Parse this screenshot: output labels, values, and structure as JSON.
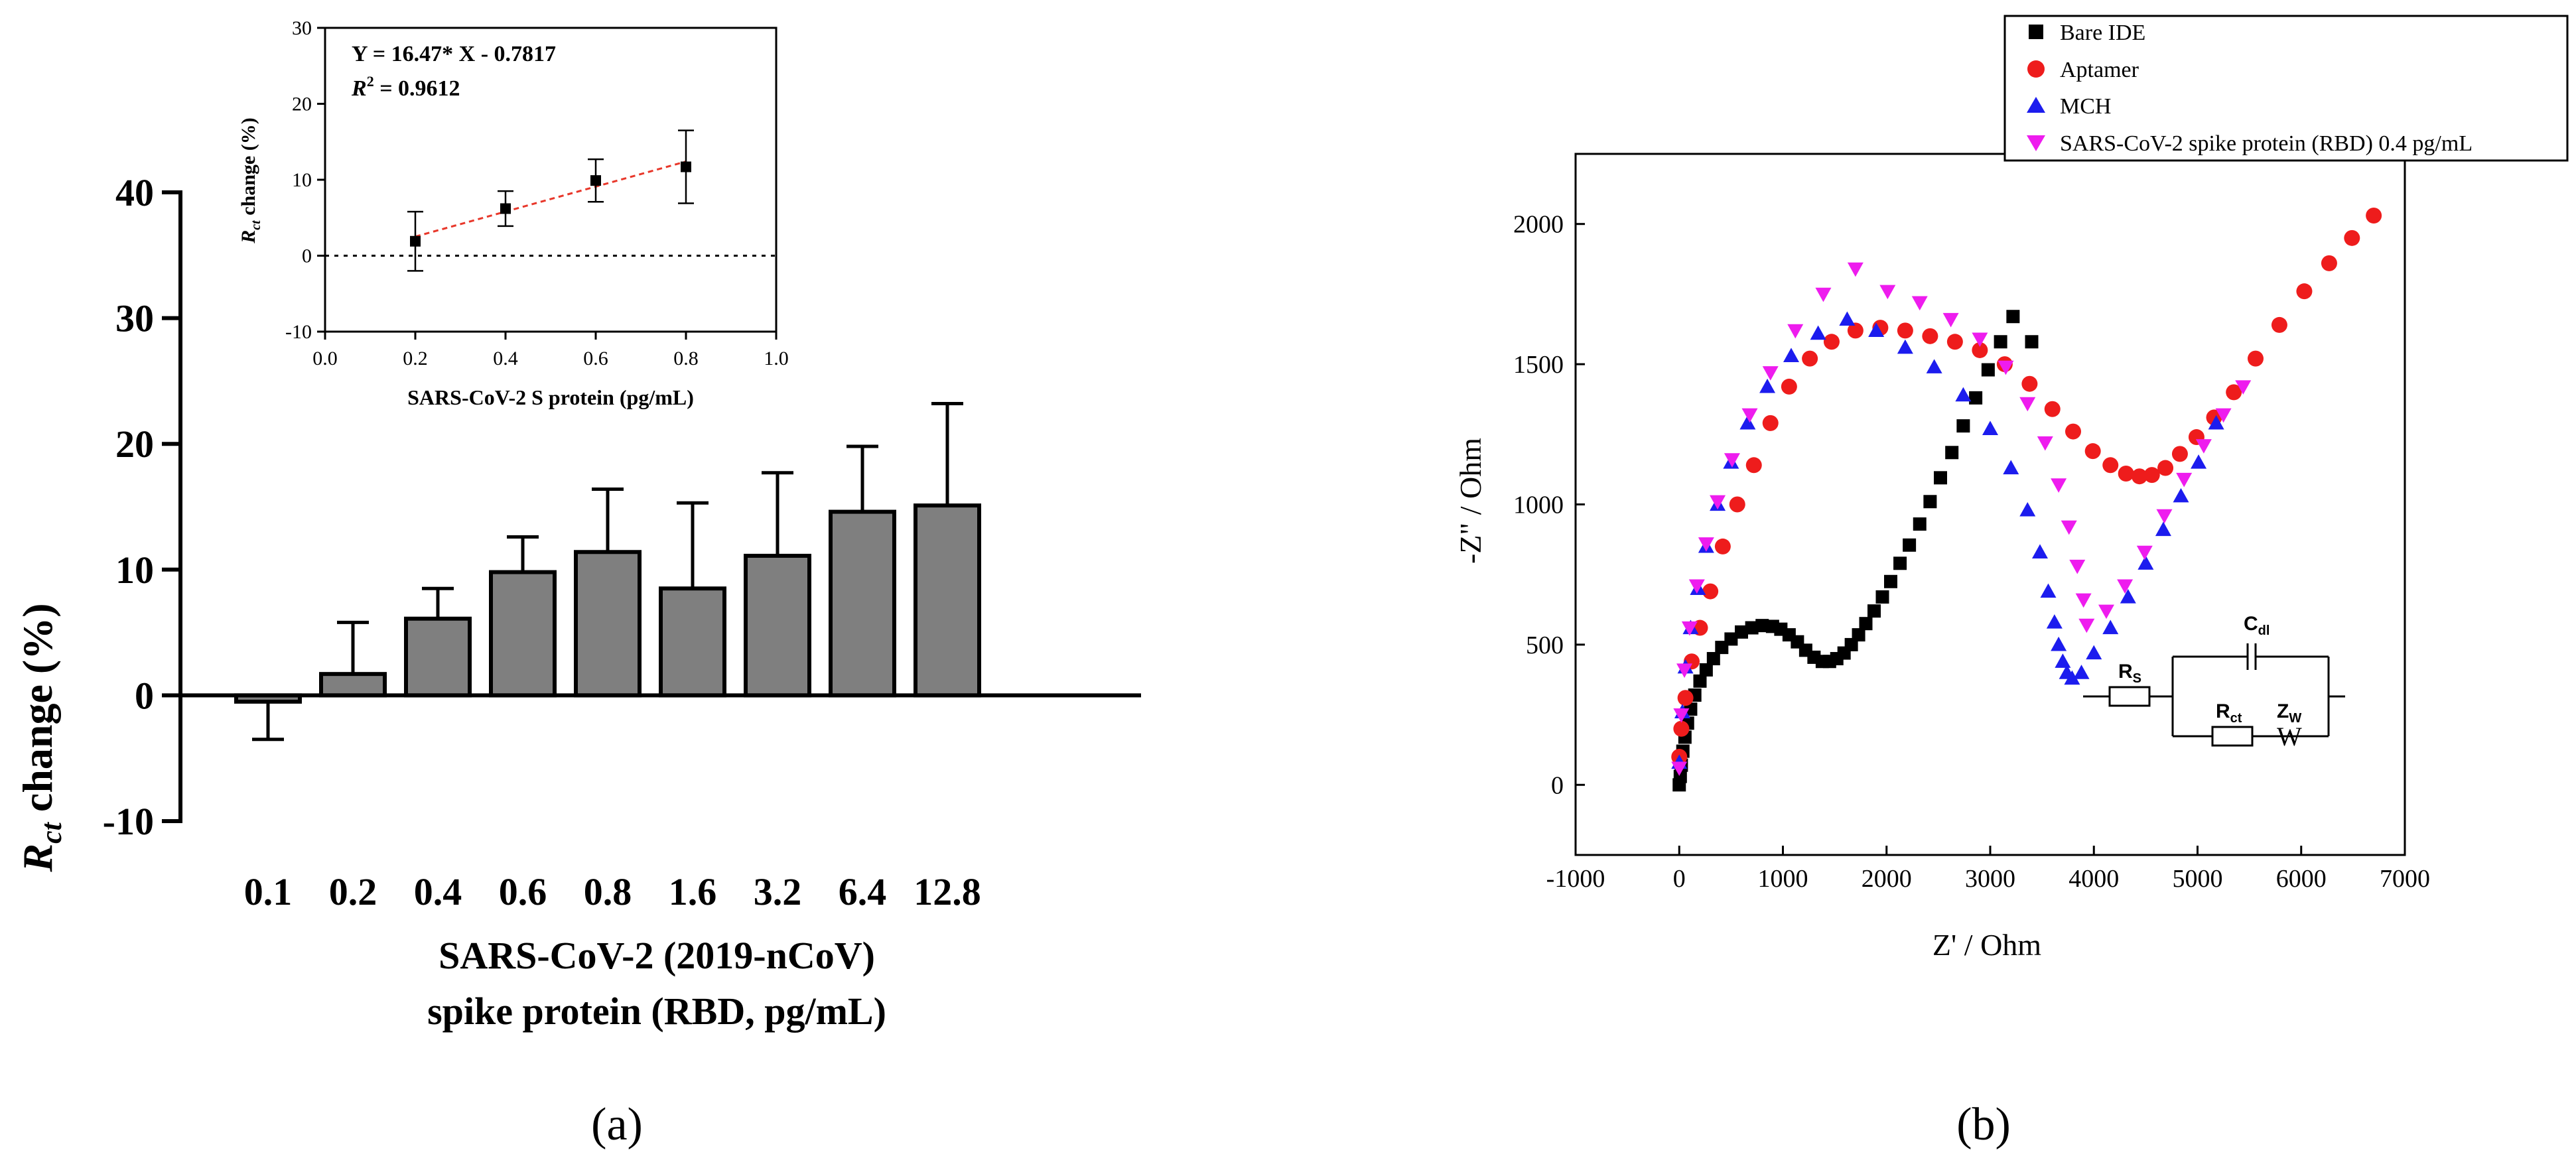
{
  "panel_labels": {
    "a": "(a)",
    "b": "(b)"
  },
  "chart_data": [
    {
      "id": "a_main",
      "type": "bar",
      "categories": [
        "0.1",
        "0.2",
        "0.4",
        "0.6",
        "0.8",
        "1.6",
        "3.2",
        "6.4",
        "12.8"
      ],
      "series": [
        {
          "values": [
            -0.5,
            1.7,
            6.1,
            9.8,
            11.4,
            8.5,
            11.1,
            14.6,
            15.1
          ],
          "error": [
            3.0,
            4.1,
            2.4,
            2.8,
            5.0,
            6.8,
            6.6,
            5.2,
            8.1
          ]
        }
      ],
      "ylabel": {
        "main": "R",
        "sub": "ct",
        "tail": " change (%)"
      },
      "xlabel": [
        "SARS-CoV-2 (2019-nCoV)",
        "spike protein (RBD, pg/mL)"
      ],
      "ylim": [
        -10,
        40
      ],
      "yticks": [
        "-10",
        "0",
        "10",
        "20",
        "30",
        "40"
      ],
      "colors": {
        "bar": "#7f7f7f",
        "edge": "#000000"
      }
    },
    {
      "id": "a_inset",
      "type": "scatter",
      "points": [
        {
          "x": 0.2,
          "y": 1.9,
          "err": 3.9
        },
        {
          "x": 0.4,
          "y": 6.2,
          "err": 2.3
        },
        {
          "x": 0.6,
          "y": 9.9,
          "err": 2.8
        },
        {
          "x": 0.8,
          "y": 11.7,
          "err": 4.8
        }
      ],
      "fit": {
        "slope": 16.47,
        "intercept": -0.7817,
        "x_range": [
          0.2,
          0.8
        ]
      },
      "equation": "Y = 16.47* X - 0.7817",
      "r2_label": "R",
      "r2_sup": "2",
      "r2_value": " = 0.9612",
      "ylabel": {
        "main": "R",
        "sub": "ct",
        "tail": " change (%)"
      },
      "xlabel": "SARS-CoV-2 S protein (pg/mL)",
      "xlim": [
        0.0,
        1.0
      ],
      "ylim": [
        -10,
        30
      ],
      "xticks": [
        "0.0",
        "0.2",
        "0.4",
        "0.6",
        "0.8",
        "1.0"
      ],
      "yticks": [
        "-10",
        "0",
        "10",
        "20",
        "30"
      ],
      "colors": {
        "fit": "#e8372a",
        "points": "#000000"
      }
    },
    {
      "id": "b_nyquist",
      "type": "scatter",
      "xlabel": "Z' / Ohm",
      "ylabel": "-Z\" / Ohm",
      "xlim": [
        -1000,
        7000
      ],
      "ylim": [
        -250,
        2250
      ],
      "xticks": [
        "-1000",
        "0",
        "1000",
        "2000",
        "3000",
        "4000",
        "5000",
        "6000",
        "7000"
      ],
      "yticks": [
        "0",
        "500",
        "1000",
        "1500",
        "2000"
      ],
      "legend_position": "top-right",
      "series": [
        {
          "name": "Bare IDE",
          "marker": "square",
          "color": "#000000",
          "x": [
            0,
            10,
            20,
            35,
            55,
            80,
            110,
            150,
            200,
            260,
            330,
            410,
            500,
            600,
            700,
            800,
            900,
            980,
            1060,
            1140,
            1220,
            1300,
            1380,
            1450,
            1520,
            1590,
            1660,
            1730,
            1800,
            1880,
            1960,
            2040,
            2130,
            2220,
            2320,
            2420,
            2520,
            2630,
            2740,
            2860,
            2980,
            3100,
            3220,
            3400
          ],
          "y": [
            0,
            30,
            70,
            120,
            170,
            220,
            270,
            320,
            370,
            410,
            450,
            490,
            520,
            545,
            560,
            568,
            565,
            555,
            535,
            510,
            480,
            455,
            440,
            440,
            450,
            470,
            500,
            535,
            575,
            620,
            670,
            725,
            790,
            855,
            930,
            1010,
            1095,
            1185,
            1280,
            1380,
            1480,
            1580,
            1670,
            1580
          ]
        },
        {
          "name": "Aptamer",
          "marker": "circle",
          "color": "#ee1c1c",
          "x": [
            0,
            20,
            60,
            120,
            200,
            300,
            420,
            560,
            720,
            880,
            1060,
            1260,
            1470,
            1700,
            1940,
            2180,
            2420,
            2660,
            2900,
            3140,
            3380,
            3600,
            3800,
            3990,
            4160,
            4310,
            4440,
            4560,
            4690,
            4830,
            4990,
            5160,
            5350,
            5560,
            5790,
            6030,
            6270,
            6490,
            6700
          ],
          "y": [
            100,
            200,
            310,
            440,
            560,
            690,
            850,
            1000,
            1140,
            1290,
            1420,
            1520,
            1580,
            1620,
            1630,
            1620,
            1600,
            1580,
            1550,
            1500,
            1430,
            1340,
            1260,
            1190,
            1140,
            1110,
            1100,
            1105,
            1130,
            1180,
            1240,
            1310,
            1400,
            1520,
            1640,
            1760,
            1860,
            1950,
            2030
          ]
        },
        {
          "name": "MCH",
          "marker": "triangle",
          "color": "#1c1cee",
          "x": [
            0,
            30,
            60,
            110,
            180,
            260,
            370,
            500,
            660,
            850,
            1080,
            1340,
            1620,
            1900,
            2180,
            2460,
            2740,
            3000,
            3200,
            3360,
            3480,
            3560,
            3620,
            3660,
            3700,
            3740,
            3790,
            3880,
            4000,
            4160,
            4330,
            4500,
            4670,
            4840,
            5010,
            5180
          ],
          "y": [
            80,
            260,
            420,
            560,
            700,
            850,
            1000,
            1150,
            1290,
            1420,
            1530,
            1610,
            1660,
            1620,
            1560,
            1490,
            1390,
            1270,
            1130,
            980,
            830,
            690,
            580,
            500,
            440,
            400,
            380,
            400,
            470,
            560,
            670,
            790,
            910,
            1030,
            1150,
            1290
          ]
        },
        {
          "name": "SARS-CoV-2 spike protein (RBD) 0.4 pg/mL",
          "marker": "triangle-down",
          "color": "#ee1cee",
          "x": [
            0,
            20,
            50,
            100,
            170,
            260,
            370,
            510,
            680,
            880,
            1120,
            1390,
            1700,
            2010,
            2320,
            2620,
            2900,
            3150,
            3360,
            3530,
            3660,
            3760,
            3840,
            3900,
            3930,
            4120,
            4300,
            4490,
            4680,
            4870,
            5060,
            5250,
            5440
          ],
          "y": [
            60,
            250,
            410,
            560,
            710,
            860,
            1010,
            1160,
            1320,
            1470,
            1620,
            1750,
            1840,
            1760,
            1720,
            1660,
            1590,
            1490,
            1360,
            1220,
            1070,
            920,
            780,
            660,
            570,
            620,
            710,
            830,
            960,
            1090,
            1210,
            1320,
            1420
          ]
        }
      ],
      "circuit": {
        "rs": "R",
        "rs_sub": "S",
        "cdl": "C",
        "cdl_sub": "dl",
        "rct": "R",
        "rct_sub": "ct",
        "zw": "Z",
        "zw_sub": "W",
        "w": "W"
      }
    }
  ]
}
